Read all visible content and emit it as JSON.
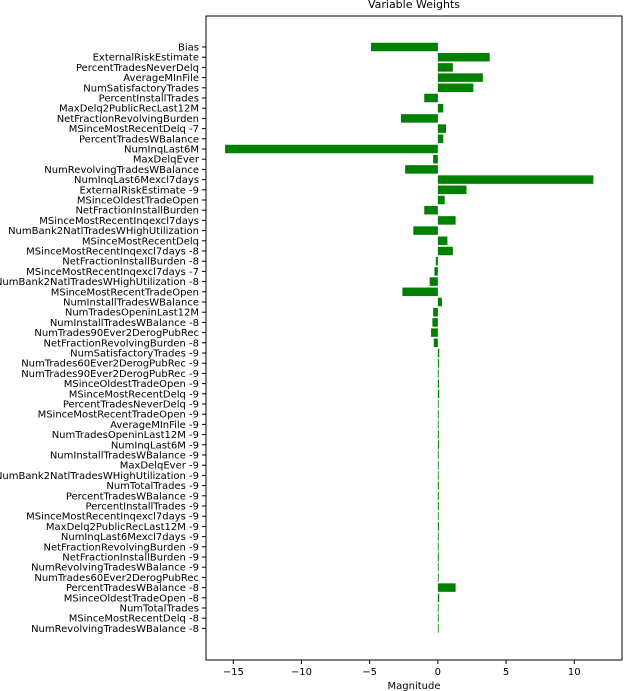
{
  "chart_data": {
    "type": "bar",
    "orientation": "horizontal",
    "title": "Variable Weights",
    "xlabel": "Magnitude",
    "ylabel": "",
    "xlim": [
      -17,
      13.5
    ],
    "xticks": [
      -15,
      -10,
      -5,
      0,
      5,
      10
    ],
    "xtick_labels": [
      "−15",
      "−10",
      "−5",
      "0",
      "5",
      "10"
    ],
    "grid": false,
    "bar_color": "#008000",
    "categories": [
      "Bias",
      "ExternalRiskEstimate",
      "PercentTradesNeverDelq",
      "AverageMInFile",
      "NumSatisfactoryTrades",
      "PercentInstallTrades",
      "MaxDelq2PublicRecLast12M",
      "NetFractionRevolvingBurden",
      "MSinceMostRecentDelq -7",
      "PercentTradesWBalance",
      "NumInqLast6M",
      "MaxDelqEver",
      "NumRevolvingTradesWBalance",
      "NumInqLast6Mexcl7days",
      "ExternalRiskEstimate -9",
      "MSinceOldestTradeOpen",
      "NetFractionInstallBurden",
      "MSinceMostRecentInqexcl7days",
      "NumBank2NatlTradesWHighUtilization",
      "MSinceMostRecentDelq",
      "MSinceMostRecentInqexcl7days -8",
      "NetFractionInstallBurden -8",
      "MSinceMostRecentInqexcl7days -7",
      "NumBank2NatlTradesWHighUtilization -8",
      "MSinceMostRecentTradeOpen",
      "NumInstallTradesWBalance",
      "NumTradesOpeninLast12M",
      "NumInstallTradesWBalance -8",
      "NumTrades90Ever2DerogPubRec",
      "NetFractionRevolvingBurden -8",
      "NumSatisfactoryTrades -9",
      "NumTrades60Ever2DerogPubRec -9",
      "NumTrades90Ever2DerogPubRec -9",
      "MSinceOldestTradeOpen -9",
      "MSinceMostRecentDelq -9",
      "PercentTradesNeverDelq -9",
      "MSinceMostRecentTradeOpen -9",
      "AverageMInFile -9",
      "NumTradesOpeninLast12M -9",
      "NumInqLast6M -9",
      "NumInstallTradesWBalance -9",
      "MaxDelqEver -9",
      "NumBank2NatlTradesWHighUtilization -9",
      "NumTotalTrades -9",
      "PercentTradesWBalance -9",
      "PercentInstallTrades -9",
      "MSinceMostRecentInqexcl7days -9",
      "MaxDelq2PublicRecLast12M -9",
      "NumInqLast6Mexcl7days -9",
      "NetFractionRevolvingBurden -9",
      "NetFractionInstallBurden -9",
      "NumRevolvingTradesWBalance -9",
      "NumTrades60Ever2DerogPubRec",
      "PercentTradesWBalance -8",
      "MSinceOldestTradeOpen -8",
      "NumTotalTrades",
      "MSinceMostRecentDelq -8",
      "NumRevolvingTradesWBalance -8"
    ],
    "values": [
      -4.9,
      3.8,
      1.1,
      3.3,
      2.6,
      -1.0,
      0.4,
      -2.7,
      0.6,
      0.4,
      -15.6,
      -0.35,
      -2.4,
      11.4,
      2.1,
      0.5,
      -1.0,
      1.3,
      -1.8,
      0.7,
      1.1,
      -0.15,
      -0.25,
      -0.6,
      -2.6,
      0.3,
      -0.35,
      -0.4,
      -0.5,
      -0.3,
      0.1,
      0.08,
      0.06,
      0.08,
      0.1,
      0.06,
      0.06,
      0.05,
      0.07,
      0.08,
      0.06,
      0.06,
      0.06,
      0.07,
      0.07,
      0.07,
      0.06,
      0.08,
      0.06,
      0.06,
      0.07,
      0.06,
      0.0,
      1.3,
      0.1,
      0.0,
      0.06,
      0.06
    ]
  }
}
